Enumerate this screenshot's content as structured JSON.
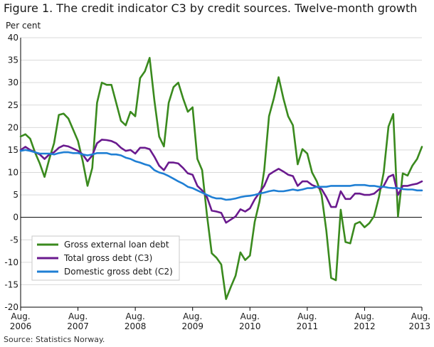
{
  "title": "Figure 1. The credit indicator C3 by credit sources. Twelve-month growth",
  "y_unit": "Per cent",
  "source": "Source: Statistics Norway.",
  "colors": {
    "external": "#3a8a1e",
    "c3": "#6a1a8e",
    "c2": "#1f7fd4",
    "grid": "#d9d9d9",
    "axis": "#000000"
  },
  "chart_data": {
    "type": "line",
    "ylabel": "Per cent",
    "ylim": [
      -20,
      40
    ],
    "yticks": [
      -20,
      -15,
      -10,
      -5,
      0,
      5,
      10,
      15,
      20,
      25,
      30,
      35,
      40
    ],
    "xrange": [
      "2006-08",
      "2013-08"
    ],
    "xticks": [
      {
        "date": "2006-08",
        "month": "Aug.",
        "year": "2006"
      },
      {
        "date": "2007-08",
        "month": "Aug.",
        "year": "2007"
      },
      {
        "date": "2008-08",
        "month": "Aug.",
        "year": "2008"
      },
      {
        "date": "2009-08",
        "month": "Aug.",
        "year": "2009"
      },
      {
        "date": "2010-08",
        "month": "Aug.",
        "year": "2010"
      },
      {
        "date": "2011-08",
        "month": "Aug.",
        "year": "2011"
      },
      {
        "date": "2012-08",
        "month": "Aug.",
        "year": "2012"
      },
      {
        "date": "2013-08",
        "month": "Aug.",
        "year": "2013"
      }
    ],
    "grid": true,
    "legend_position": "bottom-left",
    "series": [
      {
        "name": "Gross external loan debt",
        "color": "#3a8a1e",
        "points": [
          [
            "2006-08",
            18.0
          ],
          [
            "2006-09",
            18.5
          ],
          [
            "2006-10",
            17.5
          ],
          [
            "2006-11",
            14.5
          ],
          [
            "2006-12",
            12.0
          ],
          [
            "2007-01",
            9.0
          ],
          [
            "2007-02",
            13.0
          ],
          [
            "2007-03",
            16.5
          ],
          [
            "2007-04",
            22.8
          ],
          [
            "2007-05",
            23.1
          ],
          [
            "2007-06",
            22.0
          ],
          [
            "2007-07",
            19.5
          ],
          [
            "2007-08",
            17.0
          ],
          [
            "2007-09",
            12.5
          ],
          [
            "2007-10",
            7.0
          ],
          [
            "2007-11",
            11.0
          ],
          [
            "2007-12",
            25.5
          ],
          [
            "2008-01",
            30.0
          ],
          [
            "2008-02",
            29.5
          ],
          [
            "2008-03",
            29.5
          ],
          [
            "2008-04",
            25.5
          ],
          [
            "2008-05",
            21.5
          ],
          [
            "2008-06",
            20.5
          ],
          [
            "2008-07",
            23.5
          ],
          [
            "2008-08",
            22.5
          ],
          [
            "2008-09",
            31.0
          ],
          [
            "2008-10",
            32.5
          ],
          [
            "2008-11",
            35.5
          ],
          [
            "2008-12",
            26.0
          ],
          [
            "2009-01",
            18.0
          ],
          [
            "2009-02",
            15.8
          ],
          [
            "2009-03",
            25.5
          ],
          [
            "2009-04",
            29.0
          ],
          [
            "2009-05",
            30.0
          ],
          [
            "2009-06",
            26.5
          ],
          [
            "2009-07",
            23.5
          ],
          [
            "2009-08",
            24.5
          ],
          [
            "2009-09",
            13.0
          ],
          [
            "2009-10",
            10.5
          ],
          [
            "2009-11",
            0.5
          ],
          [
            "2009-12",
            -8.0
          ],
          [
            "2010-01",
            -9.0
          ],
          [
            "2010-02",
            -10.5
          ],
          [
            "2010-03",
            -18.2
          ],
          [
            "2010-04",
            -15.5
          ],
          [
            "2010-05",
            -13.0
          ],
          [
            "2010-06",
            -7.8
          ],
          [
            "2010-07",
            -9.5
          ],
          [
            "2010-08",
            -8.5
          ],
          [
            "2010-09",
            -1.0
          ],
          [
            "2010-10",
            3.5
          ],
          [
            "2010-11",
            10.5
          ],
          [
            "2010-12",
            22.5
          ],
          [
            "2011-01",
            26.5
          ],
          [
            "2011-02",
            31.2
          ],
          [
            "2011-03",
            26.5
          ],
          [
            "2011-04",
            22.5
          ],
          [
            "2011-05",
            20.5
          ],
          [
            "2011-06",
            11.8
          ],
          [
            "2011-07",
            15.2
          ],
          [
            "2011-08",
            14.2
          ],
          [
            "2011-09",
            10.0
          ],
          [
            "2011-10",
            8.0
          ],
          [
            "2011-11",
            5.0
          ],
          [
            "2011-12",
            -3.0
          ],
          [
            "2012-01",
            -13.5
          ],
          [
            "2012-02",
            -14.0
          ],
          [
            "2012-03",
            1.7
          ],
          [
            "2012-04",
            -5.5
          ],
          [
            "2012-05",
            -5.8
          ],
          [
            "2012-06",
            -1.5
          ],
          [
            "2012-07",
            -1.0
          ],
          [
            "2012-08",
            -2.2
          ],
          [
            "2012-09",
            -1.3
          ],
          [
            "2012-10",
            0.3
          ],
          [
            "2012-11",
            4.5
          ],
          [
            "2012-12",
            10.0
          ],
          [
            "2013-01",
            20.2
          ],
          [
            "2013-02",
            23.0
          ],
          [
            "2013-03",
            0.2
          ],
          [
            "2013-04",
            9.8
          ],
          [
            "2013-05",
            9.3
          ],
          [
            "2013-06",
            11.5
          ],
          [
            "2013-07",
            13.0
          ],
          [
            "2013-08",
            15.7
          ]
        ]
      },
      {
        "name": "Total gross debt (C3)",
        "color": "#6a1a8e",
        "points": [
          [
            "2006-08",
            15.0
          ],
          [
            "2006-09",
            15.7
          ],
          [
            "2006-10",
            15.0
          ],
          [
            "2006-11",
            14.5
          ],
          [
            "2006-12",
            14.0
          ],
          [
            "2007-01",
            13.0
          ],
          [
            "2007-02",
            14.0
          ],
          [
            "2007-03",
            14.5
          ],
          [
            "2007-04",
            15.5
          ],
          [
            "2007-05",
            16.0
          ],
          [
            "2007-06",
            15.8
          ],
          [
            "2007-07",
            15.3
          ],
          [
            "2007-08",
            14.8
          ],
          [
            "2007-09",
            14.0
          ],
          [
            "2007-10",
            12.5
          ],
          [
            "2007-11",
            13.8
          ],
          [
            "2007-12",
            16.5
          ],
          [
            "2008-01",
            17.3
          ],
          [
            "2008-02",
            17.2
          ],
          [
            "2008-03",
            17.0
          ],
          [
            "2008-04",
            16.5
          ],
          [
            "2008-05",
            15.5
          ],
          [
            "2008-06",
            14.8
          ],
          [
            "2008-07",
            15.0
          ],
          [
            "2008-08",
            14.2
          ],
          [
            "2008-09",
            15.5
          ],
          [
            "2008-10",
            15.5
          ],
          [
            "2008-11",
            15.2
          ],
          [
            "2008-12",
            13.5
          ],
          [
            "2009-01",
            11.5
          ],
          [
            "2009-02",
            10.5
          ],
          [
            "2009-03",
            12.2
          ],
          [
            "2009-04",
            12.2
          ],
          [
            "2009-05",
            12.0
          ],
          [
            "2009-06",
            11.0
          ],
          [
            "2009-07",
            9.8
          ],
          [
            "2009-08",
            9.5
          ],
          [
            "2009-09",
            7.0
          ],
          [
            "2009-10",
            6.0
          ],
          [
            "2009-11",
            4.5
          ],
          [
            "2009-12",
            1.5
          ],
          [
            "2010-01",
            1.3
          ],
          [
            "2010-02",
            1.0
          ],
          [
            "2010-03",
            -1.2
          ],
          [
            "2010-04",
            -0.5
          ],
          [
            "2010-05",
            0.2
          ],
          [
            "2010-06",
            1.8
          ],
          [
            "2010-07",
            1.3
          ],
          [
            "2010-08",
            2.0
          ],
          [
            "2010-09",
            4.0
          ],
          [
            "2010-10",
            5.5
          ],
          [
            "2010-11",
            7.0
          ],
          [
            "2010-12",
            9.5
          ],
          [
            "2011-01",
            10.2
          ],
          [
            "2011-02",
            10.8
          ],
          [
            "2011-03",
            10.2
          ],
          [
            "2011-04",
            9.5
          ],
          [
            "2011-05",
            9.2
          ],
          [
            "2011-06",
            7.0
          ],
          [
            "2011-07",
            8.0
          ],
          [
            "2011-08",
            8.0
          ],
          [
            "2011-09",
            7.2
          ],
          [
            "2011-10",
            6.8
          ],
          [
            "2011-11",
            6.3
          ],
          [
            "2011-12",
            4.5
          ],
          [
            "2012-01",
            2.3
          ],
          [
            "2012-02",
            2.3
          ],
          [
            "2012-03",
            5.8
          ],
          [
            "2012-04",
            4.1
          ],
          [
            "2012-05",
            4.1
          ],
          [
            "2012-06",
            5.3
          ],
          [
            "2012-07",
            5.3
          ],
          [
            "2012-08",
            5.0
          ],
          [
            "2012-09",
            5.0
          ],
          [
            "2012-10",
            5.3
          ],
          [
            "2012-11",
            6.2
          ],
          [
            "2012-12",
            7.0
          ],
          [
            "2013-01",
            9.0
          ],
          [
            "2013-02",
            9.5
          ],
          [
            "2013-03",
            5.0
          ],
          [
            "2013-04",
            7.0
          ],
          [
            "2013-05",
            7.0
          ],
          [
            "2013-06",
            7.3
          ],
          [
            "2013-07",
            7.5
          ],
          [
            "2013-08",
            8.0
          ]
        ]
      },
      {
        "name": "Domestic gross debt (C2)",
        "color": "#1f7fd4",
        "points": [
          [
            "2006-08",
            14.8
          ],
          [
            "2006-09",
            15.0
          ],
          [
            "2006-10",
            14.8
          ],
          [
            "2006-11",
            14.5
          ],
          [
            "2006-12",
            14.2
          ],
          [
            "2007-01",
            14.2
          ],
          [
            "2007-02",
            14.2
          ],
          [
            "2007-03",
            14.0
          ],
          [
            "2007-04",
            14.3
          ],
          [
            "2007-05",
            14.5
          ],
          [
            "2007-06",
            14.5
          ],
          [
            "2007-07",
            14.3
          ],
          [
            "2007-08",
            14.3
          ],
          [
            "2007-09",
            14.0
          ],
          [
            "2007-10",
            13.8
          ],
          [
            "2007-11",
            14.0
          ],
          [
            "2007-12",
            14.3
          ],
          [
            "2008-01",
            14.3
          ],
          [
            "2008-02",
            14.3
          ],
          [
            "2008-03",
            14.0
          ],
          [
            "2008-04",
            14.0
          ],
          [
            "2008-05",
            13.8
          ],
          [
            "2008-06",
            13.3
          ],
          [
            "2008-07",
            13.0
          ],
          [
            "2008-08",
            12.5
          ],
          [
            "2008-09",
            12.2
          ],
          [
            "2008-10",
            11.8
          ],
          [
            "2008-11",
            11.5
          ],
          [
            "2008-12",
            10.5
          ],
          [
            "2009-01",
            10.0
          ],
          [
            "2009-02",
            9.7
          ],
          [
            "2009-03",
            9.2
          ],
          [
            "2009-04",
            8.6
          ],
          [
            "2009-05",
            8.0
          ],
          [
            "2009-06",
            7.5
          ],
          [
            "2009-07",
            6.8
          ],
          [
            "2009-08",
            6.5
          ],
          [
            "2009-09",
            6.0
          ],
          [
            "2009-10",
            5.5
          ],
          [
            "2009-11",
            5.0
          ],
          [
            "2009-12",
            4.5
          ],
          [
            "2010-01",
            4.2
          ],
          [
            "2010-02",
            4.2
          ],
          [
            "2010-03",
            3.9
          ],
          [
            "2010-04",
            4.0
          ],
          [
            "2010-05",
            4.2
          ],
          [
            "2010-06",
            4.5
          ],
          [
            "2010-07",
            4.7
          ],
          [
            "2010-08",
            4.8
          ],
          [
            "2010-09",
            5.0
          ],
          [
            "2010-10",
            5.3
          ],
          [
            "2010-11",
            5.5
          ],
          [
            "2010-12",
            5.8
          ],
          [
            "2011-01",
            6.0
          ],
          [
            "2011-02",
            5.8
          ],
          [
            "2011-03",
            5.8
          ],
          [
            "2011-04",
            6.0
          ],
          [
            "2011-05",
            6.2
          ],
          [
            "2011-06",
            6.0
          ],
          [
            "2011-07",
            6.2
          ],
          [
            "2011-08",
            6.5
          ],
          [
            "2011-09",
            6.5
          ],
          [
            "2011-10",
            6.8
          ],
          [
            "2011-11",
            6.8
          ],
          [
            "2011-12",
            6.8
          ],
          [
            "2012-01",
            7.0
          ],
          [
            "2012-02",
            7.0
          ],
          [
            "2012-03",
            7.0
          ],
          [
            "2012-04",
            7.0
          ],
          [
            "2012-05",
            7.0
          ],
          [
            "2012-06",
            7.2
          ],
          [
            "2012-07",
            7.2
          ],
          [
            "2012-08",
            7.2
          ],
          [
            "2012-09",
            7.0
          ],
          [
            "2012-10",
            7.0
          ],
          [
            "2012-11",
            6.8
          ],
          [
            "2012-12",
            6.8
          ],
          [
            "2013-01",
            6.6
          ],
          [
            "2013-02",
            6.5
          ],
          [
            "2013-03",
            6.5
          ],
          [
            "2013-04",
            6.3
          ],
          [
            "2013-05",
            6.2
          ],
          [
            "2013-06",
            6.2
          ],
          [
            "2013-07",
            6.0
          ],
          [
            "2013-08",
            6.0
          ]
        ]
      }
    ]
  }
}
